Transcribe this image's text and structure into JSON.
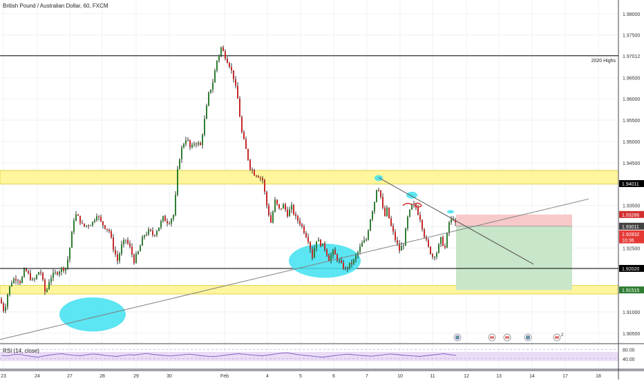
{
  "header": {
    "symbol": "British Pound / Australian Dollar, 60, FXCM"
  },
  "rsi": {
    "title": "RSI (14, close)",
    "ylim": [
      0,
      100
    ],
    "levels": [
      80,
      40
    ],
    "level_labels": [
      "80.00",
      "40.00"
    ],
    "band": [
      30,
      70
    ],
    "values": [
      55,
      52,
      58,
      60,
      54,
      50,
      47,
      52,
      56,
      60,
      62,
      58,
      55,
      53,
      57,
      61,
      59,
      55,
      52,
      50,
      54,
      58,
      56,
      60,
      63,
      59,
      56,
      54,
      52,
      55,
      58,
      60,
      57,
      53,
      51,
      49,
      52,
      56,
      59,
      62,
      60,
      57,
      55,
      53,
      56,
      60,
      64,
      66,
      62,
      58,
      55,
      52,
      49,
      47,
      50,
      54,
      57,
      60,
      58,
      55,
      53,
      51,
      54,
      57,
      61,
      59,
      56,
      54,
      52,
      50,
      53,
      56,
      59,
      62,
      58,
      55
    ],
    "color": "#7e57c2",
    "band_color": "#e9dcf5"
  },
  "chart_data": {
    "type": "candlestick",
    "title": "British Pound / Australian Dollar, 60, FXCM",
    "ylim": [
      1.9027,
      1.9832
    ],
    "y_ticks": [
      "1.98000",
      "1.97500",
      "1.97012",
      "1.96500",
      "1.96000",
      "1.95500",
      "1.95000",
      "1.94500",
      "1.94011",
      "1.93500",
      "1.93286",
      "1.93011",
      "1.92832",
      "1.92500",
      "1.92020",
      "1.91515",
      "1.91000",
      "1.90500"
    ],
    "x_ticks": [
      "23",
      "24",
      "27",
      "28",
      "29",
      "30",
      "Feb",
      "4",
      "5",
      "6",
      "7",
      "10",
      "11",
      "12",
      "13",
      "14",
      "17",
      "18"
    ],
    "grid": true,
    "close_path": [
      [
        0,
        1.913
      ],
      [
        6,
        1.91
      ],
      [
        12,
        1.915
      ],
      [
        18,
        1.9175
      ],
      [
        24,
        1.918
      ],
      [
        30,
        1.917
      ],
      [
        36,
        1.92
      ],
      [
        40,
        1.919
      ],
      [
        48,
        1.917
      ],
      [
        58,
        1.92
      ],
      [
        66,
        1.914
      ],
      [
        72,
        1.918
      ],
      [
        80,
        1.919
      ],
      [
        88,
        1.92
      ],
      [
        96,
        1.9205
      ],
      [
        102,
        1.926
      ],
      [
        108,
        1.933
      ],
      [
        114,
        1.932
      ],
      [
        120,
        1.93
      ],
      [
        128,
        1.9305
      ],
      [
        134,
        1.931
      ],
      [
        140,
        1.933
      ],
      [
        146,
        1.931
      ],
      [
        152,
        1.93
      ],
      [
        158,
        1.929
      ],
      [
        164,
        1.925
      ],
      [
        170,
        1.922
      ],
      [
        176,
        1.9255
      ],
      [
        182,
        1.927
      ],
      [
        188,
        1.925
      ],
      [
        194,
        1.922
      ],
      [
        200,
        1.924
      ],
      [
        208,
        1.928
      ],
      [
        216,
        1.929
      ],
      [
        222,
        1.928
      ],
      [
        230,
        1.93
      ],
      [
        236,
        1.932
      ],
      [
        244,
        1.931
      ],
      [
        252,
        1.933
      ],
      [
        258,
        1.945
      ],
      [
        264,
        1.949
      ],
      [
        270,
        1.951
      ],
      [
        276,
        1.948
      ],
      [
        282,
        1.95
      ],
      [
        290,
        1.949
      ],
      [
        296,
        1.955
      ],
      [
        302,
        1.961
      ],
      [
        308,
        1.964
      ],
      [
        314,
        1.969
      ],
      [
        320,
        1.972
      ],
      [
        326,
        1.97
      ],
      [
        332,
        1.968
      ],
      [
        338,
        1.965
      ],
      [
        344,
        1.96
      ],
      [
        350,
        1.952
      ],
      [
        356,
        1.948
      ],
      [
        362,
        1.944
      ],
      [
        368,
        1.9425
      ],
      [
        374,
        1.942
      ],
      [
        380,
        1.941
      ],
      [
        386,
        1.935
      ],
      [
        392,
        1.931
      ],
      [
        398,
        1.936
      ],
      [
        404,
        1.934
      ],
      [
        410,
        1.935
      ],
      [
        416,
        1.933
      ],
      [
        422,
        1.9345
      ],
      [
        428,
        1.932
      ],
      [
        434,
        1.931
      ],
      [
        440,
        1.929
      ],
      [
        446,
        1.927
      ],
      [
        452,
        1.923
      ],
      [
        458,
        1.927
      ],
      [
        464,
        1.926
      ],
      [
        470,
        1.925
      ],
      [
        476,
        1.9225
      ],
      [
        482,
        1.924
      ],
      [
        488,
        1.9225
      ],
      [
        494,
        1.921
      ],
      [
        500,
        1.92
      ],
      [
        506,
        1.921
      ],
      [
        512,
        1.922
      ],
      [
        518,
        1.924
      ],
      [
        524,
        1.926
      ],
      [
        530,
        1.927
      ],
      [
        536,
        1.932
      ],
      [
        542,
        1.936
      ],
      [
        546,
        1.94
      ],
      [
        550,
        1.938
      ],
      [
        556,
        1.932
      ],
      [
        560,
        1.934
      ],
      [
        566,
        1.93
      ],
      [
        572,
        1.927
      ],
      [
        578,
        1.9245
      ],
      [
        584,
        1.926
      ],
      [
        590,
        1.932
      ],
      [
        596,
        1.935
      ],
      [
        602,
        1.9345
      ],
      [
        608,
        1.932
      ],
      [
        614,
        1.928
      ],
      [
        620,
        1.925
      ],
      [
        626,
        1.923
      ],
      [
        632,
        1.924
      ],
      [
        638,
        1.927
      ],
      [
        644,
        1.925
      ],
      [
        650,
        1.931
      ],
      [
        656,
        1.932
      ],
      [
        660,
        1.93
      ]
    ],
    "horizontal_levels": [
      {
        "value": 1.97012,
        "label": "2020 Highs",
        "color": "#000000"
      },
      {
        "value": 1.9202,
        "label": "",
        "color": "#000000"
      }
    ],
    "zones": [
      {
        "from": 1.94,
        "to": 1.9432,
        "color": "#fff59d"
      },
      {
        "from": 1.9142,
        "to": 1.9162,
        "color": "#fff59d"
      }
    ],
    "trendlines": [
      {
        "from": [
          0,
          1.9035
        ],
        "to": [
          852,
          1.9365
        ],
        "color": "#7f7f7f"
      },
      {
        "from": [
          548,
          1.9415
        ],
        "to": [
          772,
          1.9212
        ],
        "color": "#555555"
      }
    ],
    "position": {
      "start_x": 660,
      "end_x": 828,
      "entry": 1.93011,
      "stop": 1.93286,
      "target": 1.91515,
      "stop_color": "#f8c9c9",
      "target_color": "#c8e6c9"
    },
    "ellipses": [
      {
        "cx": 134,
        "cy": 1.9094,
        "rx": 48,
        "ry": 0.004
      },
      {
        "cx": 470,
        "cy": 1.922,
        "rx": 52,
        "ry": 0.004
      },
      {
        "cx": 548,
        "cy": 1.9414,
        "rx": 6,
        "ry": 0.0007
      },
      {
        "cx": 596,
        "cy": 1.9374,
        "rx": 8,
        "ry": 0.0008
      },
      {
        "cx": 652,
        "cy": 1.9335,
        "rx": 5,
        "ry": 0.0004
      }
    ],
    "price_labels": [
      {
        "text": "1.94011",
        "value": 1.94011,
        "bg": "#000000",
        "fg": "#ffffff"
      },
      {
        "text": "1.93286",
        "value": 1.93286,
        "bg": "#d32f2f",
        "fg": "#ffffff"
      },
      {
        "text": "1.93011",
        "value": 1.93011,
        "bg": "#424242",
        "fg": "#ffffff"
      },
      {
        "text": "1.92832",
        "value": 1.92832,
        "bg": "#e53935",
        "fg": "#ffffff"
      },
      {
        "text": "10:36",
        "value": 1.9269,
        "bg": "#e53935",
        "fg": "#ffffff"
      },
      {
        "text": "1.92020",
        "value": 1.9202,
        "bg": "#000000",
        "fg": "#ffffff"
      },
      {
        "text": "1.91515",
        "value": 1.91515,
        "bg": "#2e7d32",
        "fg": "#ffffff"
      }
    ],
    "events": [
      {
        "x": 662,
        "kind": "globe"
      },
      {
        "x": 712,
        "kind": "flag"
      },
      {
        "x": 734,
        "kind": "flag"
      },
      {
        "x": 764,
        "kind": "globe"
      },
      {
        "x": 806,
        "kind": "flag",
        "badge": "2"
      }
    ],
    "colors": {
      "up": "#2e7d32",
      "down": "#c62828",
      "wick": "#000000"
    }
  }
}
